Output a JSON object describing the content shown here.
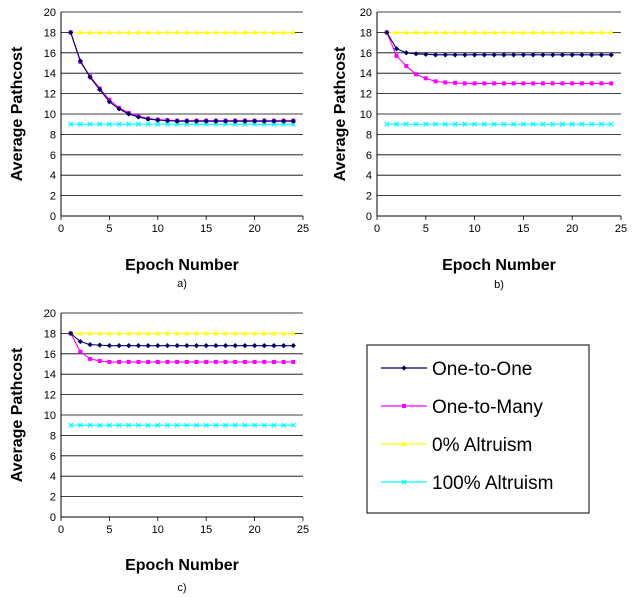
{
  "legend": [
    {
      "name": "One-to-One",
      "color": "#000066",
      "marker": "diamond"
    },
    {
      "name": "One-to-Many",
      "color": "#ff00ff",
      "marker": "square"
    },
    {
      "name": "0% Altruism",
      "color": "#ffff00",
      "marker": "triangle"
    },
    {
      "name": "100% Altruism",
      "color": "#00ffff",
      "marker": "x"
    }
  ],
  "chart_data": [
    {
      "type": "line",
      "panel_label": "a)",
      "xlabel": "Epoch Number",
      "ylabel": "Average Pathcost",
      "xlim": [
        0,
        25
      ],
      "ylim": [
        0,
        20
      ],
      "xticks": [
        0,
        5,
        10,
        15,
        20,
        25
      ],
      "yticks": [
        0,
        2,
        4,
        6,
        8,
        10,
        12,
        14,
        16,
        18,
        20
      ],
      "grid": "horizontal",
      "x": [
        1,
        2,
        3,
        4,
        5,
        6,
        7,
        8,
        9,
        10,
        11,
        12,
        13,
        14,
        15,
        16,
        17,
        18,
        19,
        20,
        21,
        22,
        23,
        24
      ],
      "series": [
        {
          "name": "One-to-One",
          "values": [
            18,
            15.2,
            13.6,
            12.4,
            11.2,
            10.5,
            10,
            9.7,
            9.5,
            9.4,
            9.35,
            9.3,
            9.3,
            9.3,
            9.3,
            9.3,
            9.3,
            9.3,
            9.3,
            9.3,
            9.3,
            9.3,
            9.3,
            9.3
          ]
        },
        {
          "name": "One-to-Many",
          "values": [
            18,
            15.1,
            13.7,
            12.5,
            11.4,
            10.6,
            10.1,
            9.8,
            9.55,
            9.45,
            9.4,
            9.35,
            9.35,
            9.35,
            9.35,
            9.35,
            9.35,
            9.35,
            9.35,
            9.35,
            9.35,
            9.35,
            9.35,
            9.35
          ]
        },
        {
          "name": "0% Altruism",
          "values": [
            18,
            18,
            18,
            18,
            18,
            18,
            18,
            18,
            18,
            18,
            18,
            18,
            18,
            18,
            18,
            18,
            18,
            18,
            18,
            18,
            18,
            18,
            18,
            18
          ]
        },
        {
          "name": "100% Altruism",
          "values": [
            9,
            9,
            9,
            9,
            9,
            9,
            9,
            9,
            9,
            9,
            9,
            9,
            9,
            9,
            9,
            9,
            9,
            9,
            9,
            9,
            9,
            9,
            9,
            9
          ]
        }
      ]
    },
    {
      "type": "line",
      "panel_label": "b)",
      "xlabel": "Epoch Number",
      "ylabel": "Average Pathcost",
      "xlim": [
        0,
        25
      ],
      "ylim": [
        0,
        20
      ],
      "xticks": [
        0,
        5,
        10,
        15,
        20,
        25
      ],
      "yticks": [
        0,
        2,
        4,
        6,
        8,
        10,
        12,
        14,
        16,
        18,
        20
      ],
      "grid": "horizontal",
      "x": [
        1,
        2,
        3,
        4,
        5,
        6,
        7,
        8,
        9,
        10,
        11,
        12,
        13,
        14,
        15,
        16,
        17,
        18,
        19,
        20,
        21,
        22,
        23,
        24
      ],
      "series": [
        {
          "name": "One-to-One",
          "values": [
            18,
            16.4,
            16,
            15.9,
            15.85,
            15.8,
            15.8,
            15.8,
            15.8,
            15.8,
            15.8,
            15.8,
            15.8,
            15.8,
            15.8,
            15.8,
            15.8,
            15.8,
            15.8,
            15.8,
            15.8,
            15.8,
            15.8,
            15.8
          ]
        },
        {
          "name": "One-to-Many",
          "values": [
            18,
            15.7,
            14.7,
            13.9,
            13.5,
            13.2,
            13.1,
            13.05,
            13,
            13,
            13,
            13,
            13,
            13,
            13,
            13,
            13,
            13,
            13,
            13,
            13,
            13,
            13,
            13
          ]
        },
        {
          "name": "0% Altruism",
          "values": [
            18,
            18,
            18,
            18,
            18,
            18,
            18,
            18,
            18,
            18,
            18,
            18,
            18,
            18,
            18,
            18,
            18,
            18,
            18,
            18,
            18,
            18,
            18,
            18
          ]
        },
        {
          "name": "100% Altruism",
          "values": [
            9,
            9,
            9,
            9,
            9,
            9,
            9,
            9,
            9,
            9,
            9,
            9,
            9,
            9,
            9,
            9,
            9,
            9,
            9,
            9,
            9,
            9,
            9,
            9
          ]
        }
      ]
    },
    {
      "type": "line",
      "panel_label": "c)",
      "xlabel": "Epoch Number",
      "ylabel": "Average Pathcost",
      "xlim": [
        0,
        25
      ],
      "ylim": [
        0,
        20
      ],
      "xticks": [
        0,
        5,
        10,
        15,
        20,
        25
      ],
      "yticks": [
        0,
        2,
        4,
        6,
        8,
        10,
        12,
        14,
        16,
        18,
        20
      ],
      "grid": "horizontal",
      "x": [
        1,
        2,
        3,
        4,
        5,
        6,
        7,
        8,
        9,
        10,
        11,
        12,
        13,
        14,
        15,
        16,
        17,
        18,
        19,
        20,
        21,
        22,
        23,
        24
      ],
      "series": [
        {
          "name": "One-to-One",
          "values": [
            18,
            17.2,
            16.9,
            16.85,
            16.8,
            16.8,
            16.8,
            16.8,
            16.8,
            16.8,
            16.8,
            16.8,
            16.8,
            16.8,
            16.8,
            16.8,
            16.8,
            16.8,
            16.8,
            16.8,
            16.8,
            16.8,
            16.8,
            16.8
          ]
        },
        {
          "name": "One-to-Many",
          "values": [
            18,
            16.2,
            15.5,
            15.3,
            15.2,
            15.2,
            15.2,
            15.2,
            15.2,
            15.2,
            15.2,
            15.2,
            15.2,
            15.2,
            15.2,
            15.2,
            15.2,
            15.2,
            15.2,
            15.2,
            15.2,
            15.2,
            15.2,
            15.2
          ]
        },
        {
          "name": "0% Altruism",
          "values": [
            18,
            18,
            18,
            18,
            18,
            18,
            18,
            18,
            18,
            18,
            18,
            18,
            18,
            18,
            18,
            18,
            18,
            18,
            18,
            18,
            18,
            18,
            18,
            18
          ]
        },
        {
          "name": "100% Altruism",
          "values": [
            9,
            9,
            9,
            9,
            9,
            9,
            9,
            9,
            9,
            9,
            9,
            9,
            9,
            9,
            9,
            9,
            9,
            9,
            9,
            9,
            9,
            9,
            9,
            9
          ]
        }
      ]
    }
  ]
}
